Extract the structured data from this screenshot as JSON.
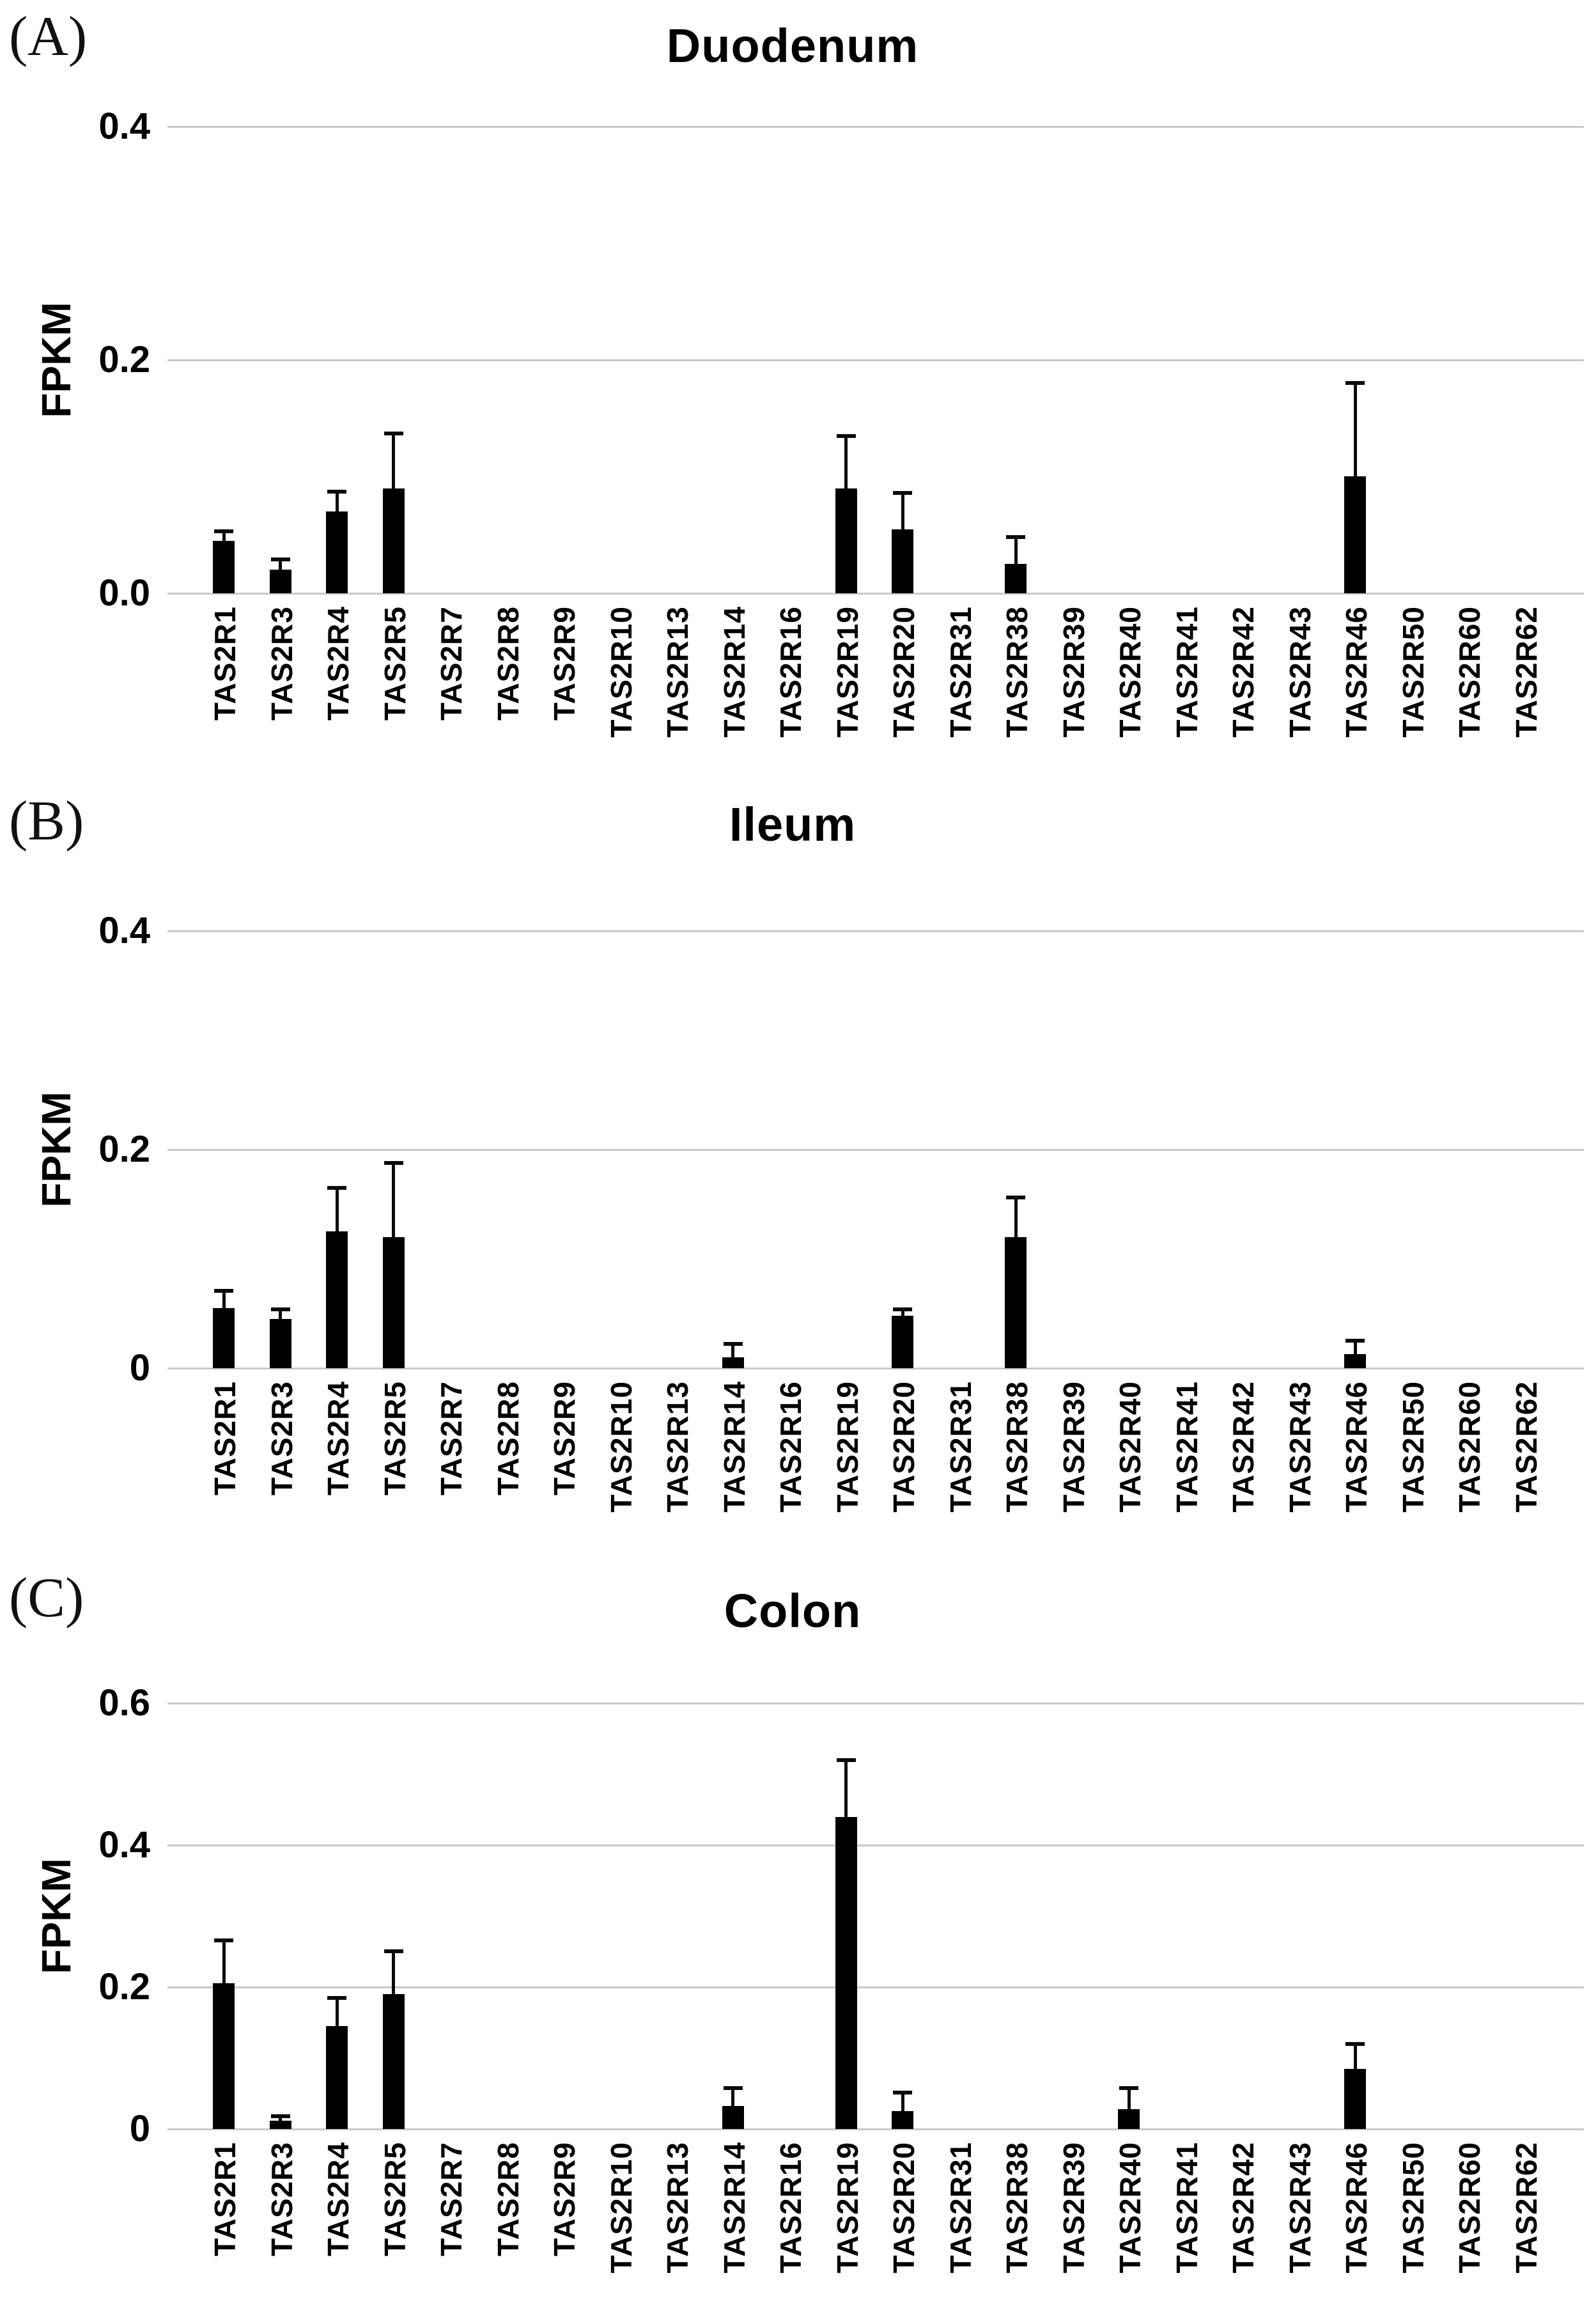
{
  "figure": {
    "letters": [
      "(A)",
      "(B)",
      "(C)"
    ]
  },
  "chart_data": [
    {
      "type": "bar",
      "title": "Duodenum",
      "ylabel": "FPKM",
      "xlabel": "",
      "ylim": [
        0,
        0.4
      ],
      "grid": "horizontal-light-gray",
      "legend": "none",
      "bar_color": "#000000",
      "yticks": [
        "0.4",
        "0.2",
        "0.0"
      ],
      "categories": [
        "TAS2R1",
        "TAS2R3",
        "TAS2R4",
        "TAS2R5",
        "TAS2R7",
        "TAS2R8",
        "TAS2R9",
        "TAS2R10",
        "TAS2R13",
        "TAS2R14",
        "TAS2R16",
        "TAS2R19",
        "TAS2R20",
        "TAS2R31",
        "TAS2R38",
        "TAS2R39",
        "TAS2R40",
        "TAS2R41",
        "TAS2R42",
        "TAS2R43",
        "TAS2R46",
        "TAS2R50",
        "TAS2R60",
        "TAS2R62"
      ],
      "values": [
        0.045,
        0.02,
        0.07,
        0.09,
        0,
        0,
        0,
        0,
        0,
        0,
        0,
        0.09,
        0.055,
        0,
        0.025,
        0,
        0,
        0,
        0,
        0,
        0.1,
        0,
        0,
        0
      ],
      "errors_upper": [
        0.008,
        0.009,
        0.017,
        0.047,
        0,
        0,
        0,
        0,
        0,
        0,
        0,
        0.045,
        0.031,
        0,
        0.023,
        0,
        0,
        0,
        0,
        0,
        0.08,
        0,
        0,
        0
      ]
    },
    {
      "type": "bar",
      "title": "Ileum",
      "ylabel": "FPKM",
      "xlabel": "",
      "ylim": [
        0,
        0.4
      ],
      "grid": "horizontal-light-gray",
      "legend": "none",
      "bar_color": "#000000",
      "yticks": [
        "0.4",
        "0.2",
        "0"
      ],
      "categories": [
        "TAS2R1",
        "TAS2R3",
        "TAS2R4",
        "TAS2R5",
        "TAS2R7",
        "TAS2R8",
        "TAS2R9",
        "TAS2R10",
        "TAS2R13",
        "TAS2R14",
        "TAS2R16",
        "TAS2R19",
        "TAS2R20",
        "TAS2R31",
        "TAS2R38",
        "TAS2R39",
        "TAS2R40",
        "TAS2R41",
        "TAS2R42",
        "TAS2R43",
        "TAS2R46",
        "TAS2R50",
        "TAS2R60",
        "TAS2R62"
      ],
      "values": [
        0.055,
        0.045,
        0.125,
        0.12,
        0,
        0,
        0,
        0,
        0,
        0.01,
        0,
        0,
        0.048,
        0,
        0.12,
        0,
        0,
        0,
        0,
        0,
        0.013,
        0,
        0,
        0
      ],
      "errors_upper": [
        0.016,
        0.009,
        0.04,
        0.068,
        0,
        0,
        0,
        0,
        0,
        0.012,
        0,
        0,
        0.006,
        0,
        0.036,
        0,
        0,
        0,
        0,
        0,
        0.012,
        0,
        0,
        0
      ]
    },
    {
      "type": "bar",
      "title": "Colon",
      "ylabel": "FPKM",
      "xlabel": "",
      "ylim": [
        0,
        0.6
      ],
      "grid": "horizontal-light-gray",
      "legend": "none",
      "bar_color": "#000000",
      "yticks": [
        "0.6",
        "0.4",
        "0.2",
        "0"
      ],
      "categories": [
        "TAS2R1",
        "TAS2R3",
        "TAS2R4",
        "TAS2R5",
        "TAS2R7",
        "TAS2R8",
        "TAS2R9",
        "TAS2R10",
        "TAS2R13",
        "TAS2R14",
        "TAS2R16",
        "TAS2R19",
        "TAS2R20",
        "TAS2R31",
        "TAS2R38",
        "TAS2R39",
        "TAS2R40",
        "TAS2R41",
        "TAS2R42",
        "TAS2R43",
        "TAS2R46",
        "TAS2R50",
        "TAS2R60",
        "TAS2R62"
      ],
      "values": [
        0.205,
        0.012,
        0.145,
        0.19,
        0,
        0,
        0,
        0,
        0,
        0.032,
        0,
        0.44,
        0.025,
        0,
        0,
        0,
        0.028,
        0,
        0,
        0,
        0.085,
        0,
        0,
        0
      ],
      "errors_upper": [
        0.06,
        0.006,
        0.04,
        0.06,
        0,
        0,
        0,
        0,
        0,
        0.025,
        0,
        0.08,
        0.026,
        0,
        0,
        0,
        0.03,
        0,
        0,
        0,
        0.035,
        0,
        0,
        0
      ]
    }
  ]
}
